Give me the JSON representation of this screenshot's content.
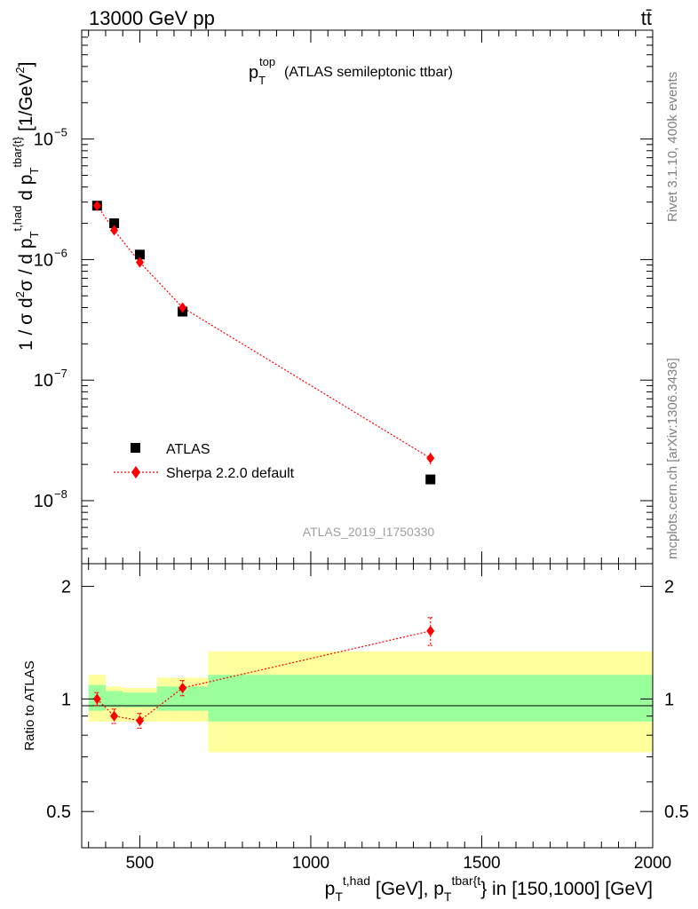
{
  "header": {
    "energy_label": "13000 GeV pp",
    "process_label": "tt̄"
  },
  "side": {
    "rivet_label": "Rivet 3.1.10,  400k events",
    "mcplots_label": "mcplots.cern.ch [arXiv:1306.3436]"
  },
  "chart_data": [
    {
      "type": "scatter",
      "panel": "main",
      "title_main": "p",
      "title_sub": "T",
      "title_sup": "top",
      "title_rest": "(ATLAS semileptonic ttbar)",
      "analysis_label": "ATLAS_2019_I1750330",
      "ylabel_parts": [
        "1 / σ d",
        "2",
        "σ / d p",
        "T",
        "t,had",
        " d p",
        "T",
        "tbar{t}",
        " [1/GeV",
        "2",
        "]"
      ],
      "yscale": "log",
      "ylim": [
        3e-09,
        8e-05
      ],
      "xlim": [
        330,
        2000
      ],
      "y_ticks": [
        {
          "value": 1e-05,
          "base": "10",
          "exp": "−5"
        },
        {
          "value": 1e-06,
          "base": "10",
          "exp": "−6"
        },
        {
          "value": 1e-07,
          "base": "10",
          "exp": "−7"
        },
        {
          "value": 1e-08,
          "base": "10",
          "exp": "−8"
        }
      ],
      "legend": {
        "position": "lower-left",
        "entries": [
          "ATLAS",
          "Sherpa 2.2.0 default"
        ]
      },
      "series": [
        {
          "name": "ATLAS",
          "marker": "square",
          "color": "#000000",
          "x": [
            375,
            425,
            500,
            625,
            1350
          ],
          "y": [
            2.8e-06,
            2e-06,
            1.1e-06,
            3.7e-07,
            1.5e-08
          ]
        },
        {
          "name": "Sherpa 2.2.0 default",
          "marker": "diamond",
          "color": "#ff0000",
          "line": "dotted",
          "x": [
            375,
            425,
            500,
            625,
            1350
          ],
          "y": [
            2.8e-06,
            1.75e-06,
            9.5e-07,
            4e-07,
            2.25e-08
          ],
          "y_err": [
            1.5e-07,
            1.2e-07,
            7e-08,
            3e-08,
            2.5e-09
          ]
        }
      ]
    },
    {
      "type": "scatter",
      "panel": "ratio",
      "ylabel": "Ratio to ATLAS",
      "xlabel_parts": [
        "p",
        "T",
        "t,had",
        " [GeV], p",
        "T",
        "tbar{t",
        "} in [150,1000] [GeV]"
      ],
      "ylim": [
        0.4,
        2.3
      ],
      "xlim": [
        330,
        2000
      ],
      "x_ticks": [
        500,
        1000,
        1500,
        2000
      ],
      "y_ticks": [
        {
          "value": 0.5,
          "label": "0.5"
        },
        {
          "value": 1,
          "label": "1"
        },
        {
          "value": 2,
          "label": "2"
        }
      ],
      "bands": [
        {
          "x_low": 350,
          "x_high": 400,
          "stat_low": 0.93,
          "stat_high": 1.09,
          "total_low": 0.87,
          "total_high": 1.16
        },
        {
          "x_low": 400,
          "x_high": 450,
          "stat_low": 0.95,
          "stat_high": 1.05,
          "total_low": 0.87,
          "total_high": 1.08
        },
        {
          "x_low": 450,
          "x_high": 550,
          "stat_low": 0.95,
          "stat_high": 1.04,
          "total_low": 0.87,
          "total_high": 1.07
        },
        {
          "x_low": 550,
          "x_high": 700,
          "stat_low": 0.93,
          "stat_high": 1.08,
          "total_low": 0.87,
          "total_high": 1.14
        },
        {
          "x_low": 700,
          "x_high": 2000,
          "stat_low": 0.87,
          "stat_high": 1.16,
          "total_low": 0.72,
          "total_high": 1.34
        }
      ],
      "band_colors": {
        "stat": "#9bff9b",
        "total": "#ffff9b"
      },
      "series": [
        {
          "name": "Sherpa 2.2.0 default",
          "marker": "diamond",
          "color": "#ff0000",
          "line": "dotted",
          "x": [
            375,
            425,
            500,
            625,
            1350
          ],
          "y": [
            1.0,
            0.9,
            0.875,
            1.07,
            1.52
          ],
          "y_err": [
            0.04,
            0.04,
            0.04,
            0.05,
            0.13
          ]
        }
      ]
    }
  ]
}
